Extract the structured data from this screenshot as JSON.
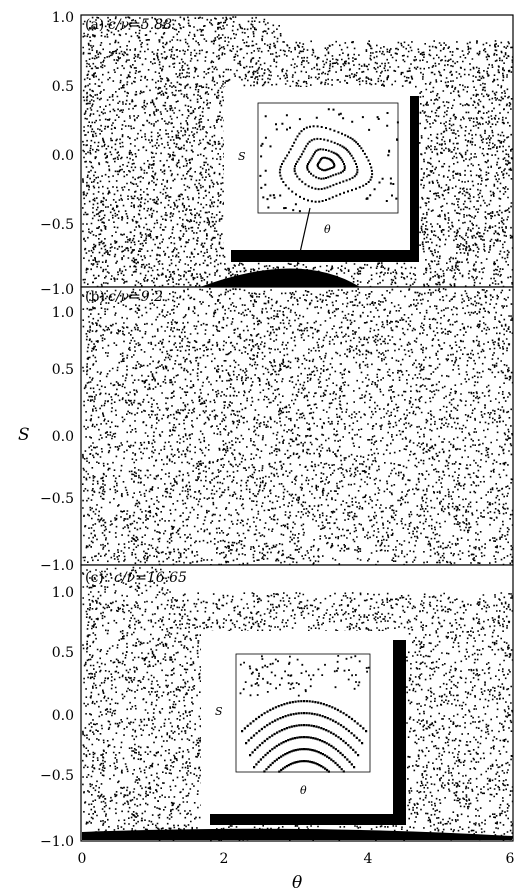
{
  "figure": {
    "xlabel": "θ",
    "ylabel": "S"
  },
  "chart_data": [
    {
      "type": "scatter",
      "panel_label": "(a)",
      "param_label": "c/ν=5.88",
      "xlim": [
        0,
        6
      ],
      "ylim": [
        -1.0,
        1.0
      ],
      "yticks": [
        "1.0",
        "0.5",
        "0.0",
        "−0.5",
        "−1.0"
      ],
      "xticks": [],
      "grid": false,
      "legend": "none",
      "description_of_data": "dense chaotic sea of points covering 0≤θ≤6, −1≤S≤0.85; small regular island near θ≈3, S≈−1",
      "inset": {
        "xlabel": "θ",
        "ylabel": "S",
        "content": "closed invariant curves around a central elliptic point"
      }
    },
    {
      "type": "scatter",
      "panel_label": "(b)",
      "param_label": "c/ν=9.2",
      "xlim": [
        0,
        6
      ],
      "ylim": [
        -1.0,
        1.0
      ],
      "yticks": [
        "1.0",
        "0.5",
        "0.0",
        "−0.5",
        "−1.0"
      ],
      "xticks": [],
      "grid": false,
      "legend": "none",
      "description_of_data": "fully chaotic sea of points covering whole panel"
    },
    {
      "type": "scatter",
      "panel_label": "(c)",
      "param_label": "c/ν=16.65",
      "xlim": [
        0,
        6
      ],
      "ylim": [
        -1.0,
        1.0
      ],
      "yticks": [
        "1.0",
        "0.5",
        "0.0",
        "−0.5",
        "−1.0"
      ],
      "xticks": [
        "0",
        "2",
        "4",
        "6"
      ],
      "grid": false,
      "legend": "none",
      "description_of_data": "chaotic sea with dense band near S≈−1",
      "inset": {
        "xlabel": "θ",
        "ylabel": "S",
        "content": "nested arch-shaped curves peaked near the centre"
      }
    }
  ]
}
